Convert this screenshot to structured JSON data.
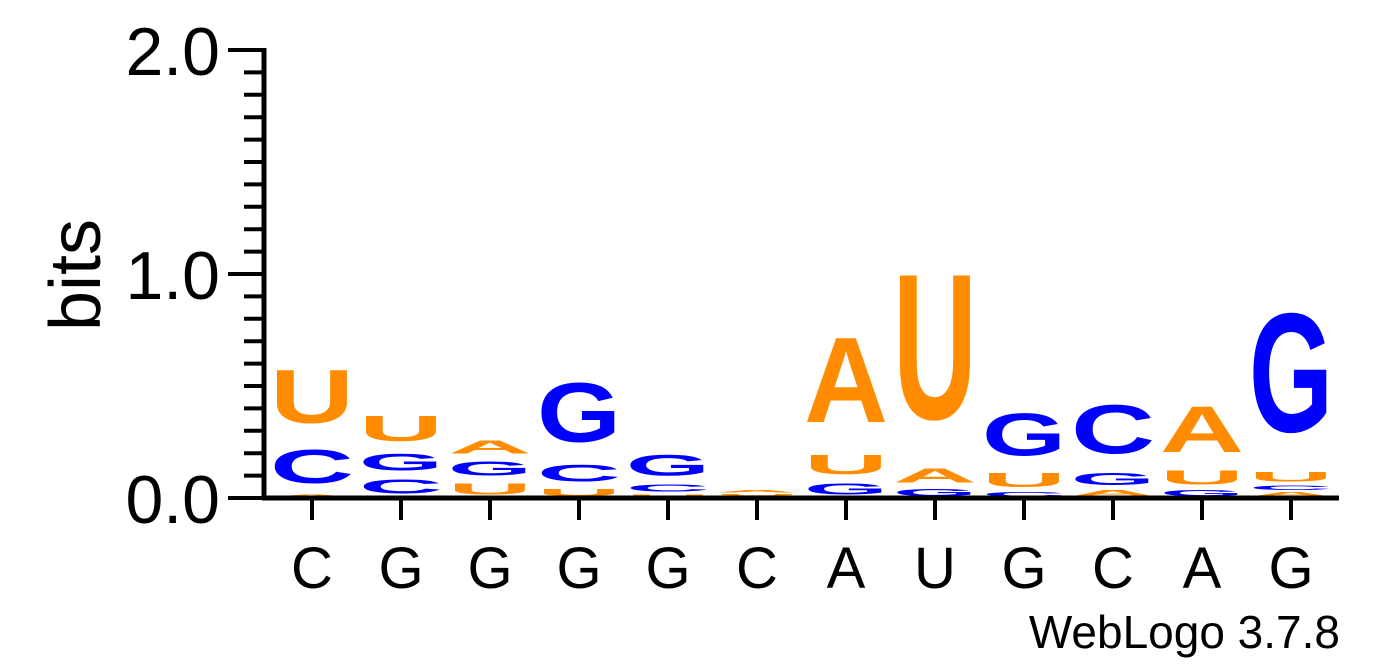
{
  "chart_data": {
    "type": "sequence-logo",
    "ylabel": "bits",
    "ylim": [
      0,
      2
    ],
    "yticks": [
      {
        "value": 0,
        "label": "0.0"
      },
      {
        "value": 1,
        "label": "1.0"
      },
      {
        "value": 2,
        "label": "2.0"
      }
    ],
    "colors": {
      "A": "#ff8c00",
      "U": "#ff8c00",
      "C": "#0000ff",
      "G": "#0000ff"
    },
    "positions": [
      {
        "label": "C",
        "stack": [
          {
            "letter": "A",
            "bits": 0.02
          },
          {
            "letter": "C",
            "bits": 0.24
          },
          {
            "letter": "U",
            "bits": 0.38
          }
        ]
      },
      {
        "label": "G",
        "stack": [
          {
            "letter": "C",
            "bits": 0.1
          },
          {
            "letter": "G",
            "bits": 0.12
          },
          {
            "letter": "U",
            "bits": 0.18
          }
        ]
      },
      {
        "label": "G",
        "stack": [
          {
            "letter": "U",
            "bits": 0.08
          },
          {
            "letter": "G",
            "bits": 0.1
          },
          {
            "letter": "A",
            "bits": 0.09
          }
        ]
      },
      {
        "label": "G",
        "stack": [
          {
            "letter": "U",
            "bits": 0.05
          },
          {
            "letter": "C",
            "bits": 0.12
          },
          {
            "letter": "G",
            "bits": 0.42
          }
        ]
      },
      {
        "label": "G",
        "stack": [
          {
            "letter": "U",
            "bits": 0.02
          },
          {
            "letter": "C",
            "bits": 0.05
          },
          {
            "letter": "G",
            "bits": 0.15
          }
        ]
      },
      {
        "label": "C",
        "stack": [
          {
            "letter": "G",
            "bits": 0.01
          },
          {
            "letter": "U",
            "bits": 0.01
          },
          {
            "letter": "A",
            "bits": 0.02
          }
        ]
      },
      {
        "label": "A",
        "stack": [
          {
            "letter": "G",
            "bits": 0.08
          },
          {
            "letter": "U",
            "bits": 0.14
          },
          {
            "letter": "A",
            "bits": 0.61
          }
        ]
      },
      {
        "label": "U",
        "stack": [
          {
            "letter": "G",
            "bits": 0.05
          },
          {
            "letter": "A",
            "bits": 0.1
          },
          {
            "letter": "U",
            "bits": 1.04
          }
        ]
      },
      {
        "label": "G",
        "stack": [
          {
            "letter": "C",
            "bits": 0.03
          },
          {
            "letter": "U",
            "bits": 0.1
          },
          {
            "letter": "G",
            "bits": 0.3
          }
        ]
      },
      {
        "label": "C",
        "stack": [
          {
            "letter": "A",
            "bits": 0.04
          },
          {
            "letter": "G",
            "bits": 0.09
          },
          {
            "letter": "C",
            "bits": 0.35
          }
        ]
      },
      {
        "label": "A",
        "stack": [
          {
            "letter": "G",
            "bits": 0.04
          },
          {
            "letter": "U",
            "bits": 0.1
          },
          {
            "letter": "A",
            "bits": 0.33
          }
        ]
      },
      {
        "label": "G",
        "stack": [
          {
            "letter": "A",
            "bits": 0.03
          },
          {
            "letter": "C",
            "bits": 0.03
          },
          {
            "letter": "U",
            "bits": 0.07
          },
          {
            "letter": "G",
            "bits": 0.85
          }
        ]
      }
    ],
    "credit": "WebLogo 3.7.8"
  }
}
